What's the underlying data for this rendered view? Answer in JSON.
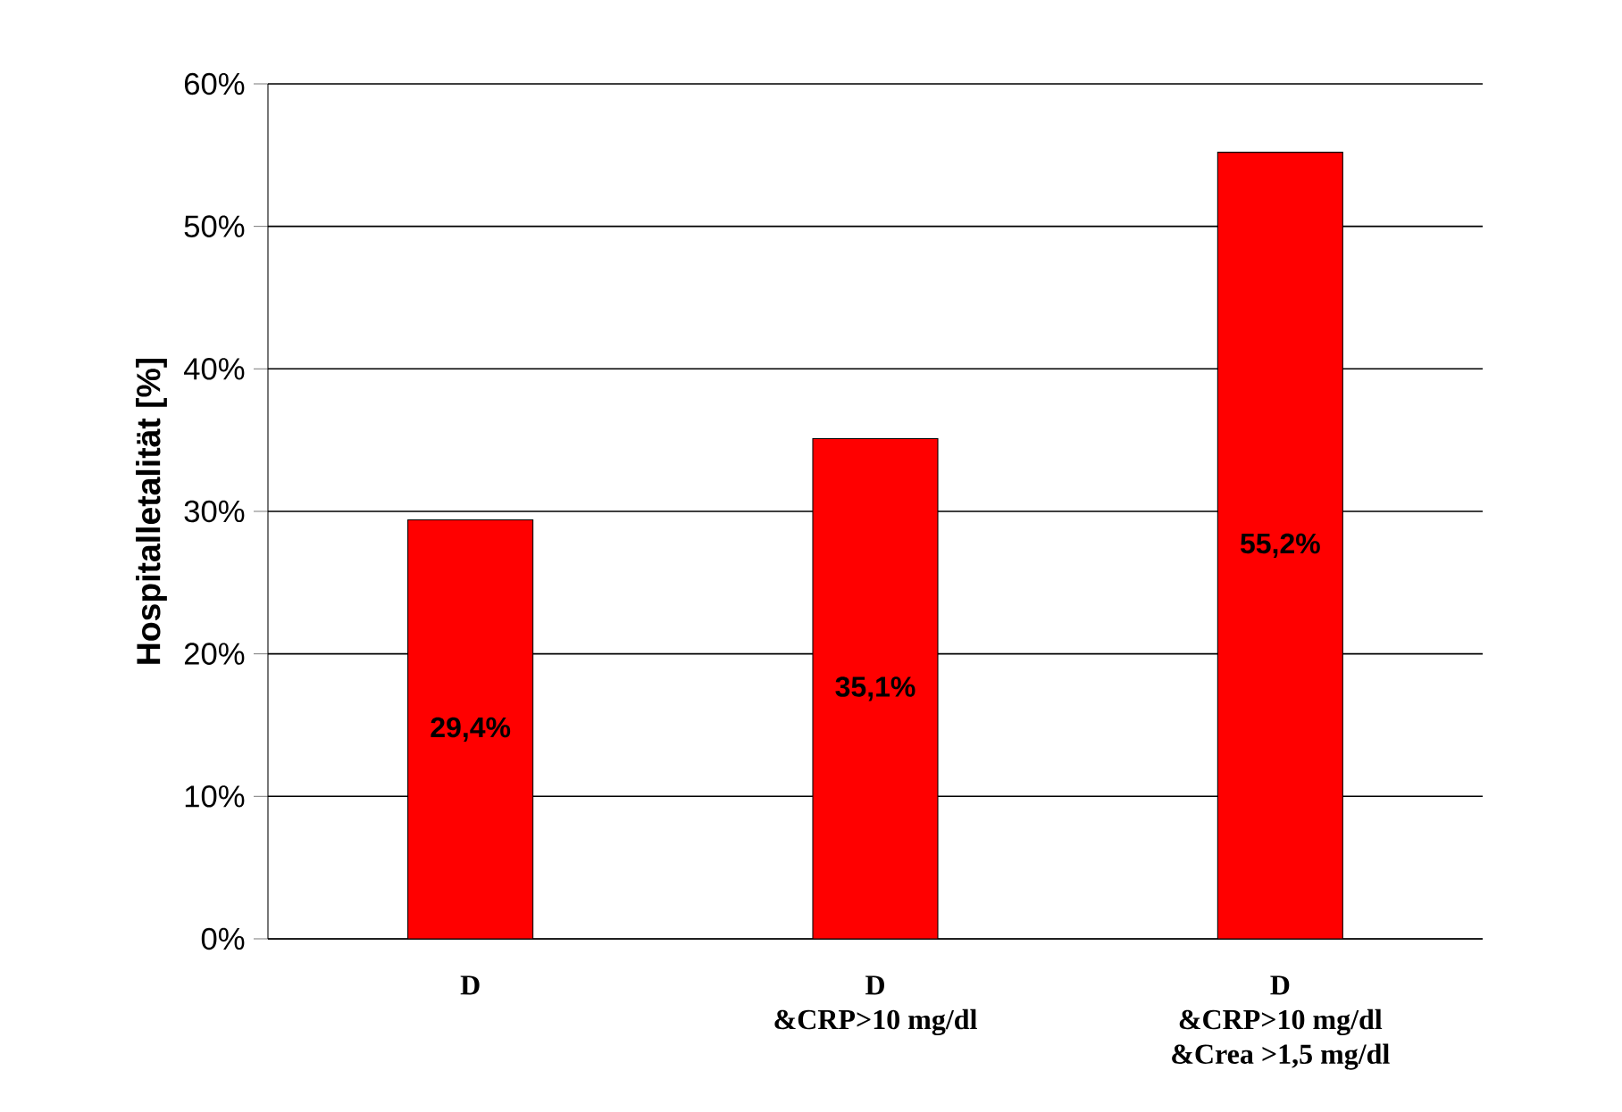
{
  "chart_data": {
    "type": "bar",
    "ylabel": "Hospitalletalität [%]",
    "categories": [
      "D",
      "D\n&CRP>10 mg/dl",
      "D\n&CRP>10 mg/dl\n&Crea >1,5 mg/dl"
    ],
    "values": [
      29.4,
      35.1,
      55.2
    ],
    "value_labels": [
      "29,4%",
      "35,1%",
      "55,2%"
    ],
    "color": "#ff0000",
    "ylim": [
      0,
      60
    ],
    "yticks": [
      {
        "value": 0,
        "label": "0%"
      },
      {
        "value": 10,
        "label": "10%"
      },
      {
        "value": 20,
        "label": "20%"
      },
      {
        "value": 30,
        "label": "30%"
      },
      {
        "value": 40,
        "label": "40%"
      },
      {
        "value": 50,
        "label": "50%"
      },
      {
        "value": 60,
        "label": "60%"
      }
    ],
    "grid": "y"
  }
}
